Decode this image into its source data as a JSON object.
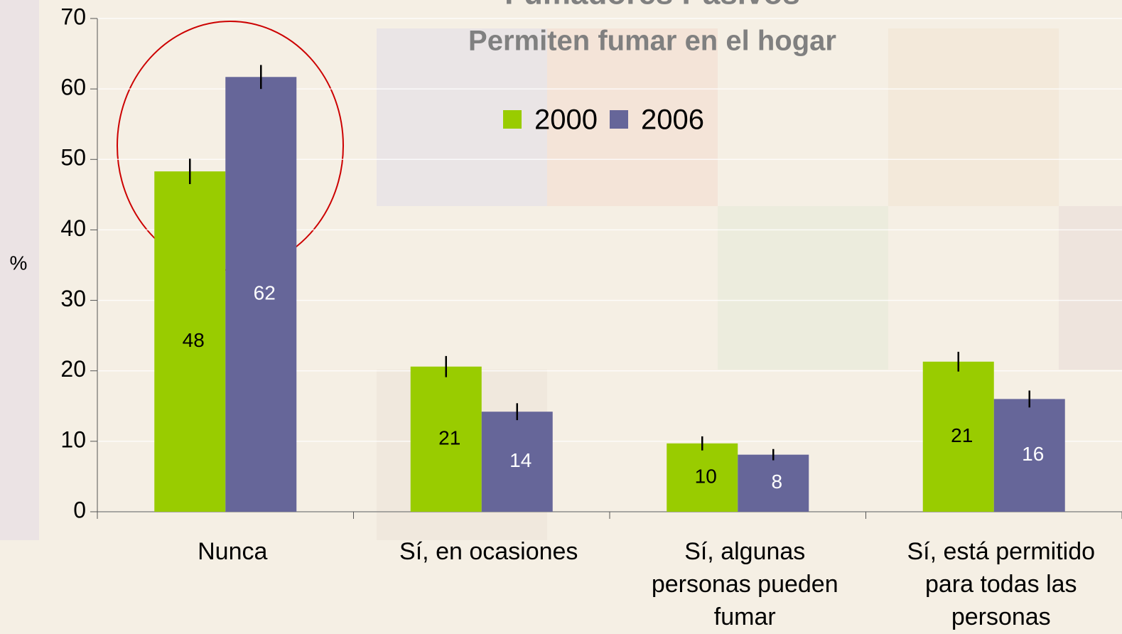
{
  "chart_data": {
    "type": "bar",
    "title": "Fumadores Pasivos",
    "subtitle": "Permiten fumar en el hogar",
    "ylabel": "%",
    "categories": [
      "Nunca",
      "Sí, en ocasiones",
      "Sí, algunas personas pueden fumar",
      "Sí, está permitido para todas las personas"
    ],
    "series": [
      {
        "name": "2000",
        "color": "#99cc00",
        "values": [
          48.3,
          20.6,
          9.7,
          21.3
        ],
        "value_labels": [
          "48",
          "21",
          "10",
          "21"
        ],
        "errors": [
          1.8,
          1.5,
          1.0,
          1.4
        ]
      },
      {
        "name": "2006",
        "color": "#666699",
        "values": [
          61.7,
          14.2,
          8.1,
          16.0
        ],
        "value_labels": [
          "62",
          "14",
          "8",
          "16"
        ],
        "errors": [
          1.7,
          1.2,
          0.8,
          1.2
        ]
      }
    ],
    "ylim": [
      0,
      70
    ],
    "yticks": [
      0,
      10,
      20,
      30,
      40,
      50,
      60,
      70
    ],
    "grid": true
  }
}
